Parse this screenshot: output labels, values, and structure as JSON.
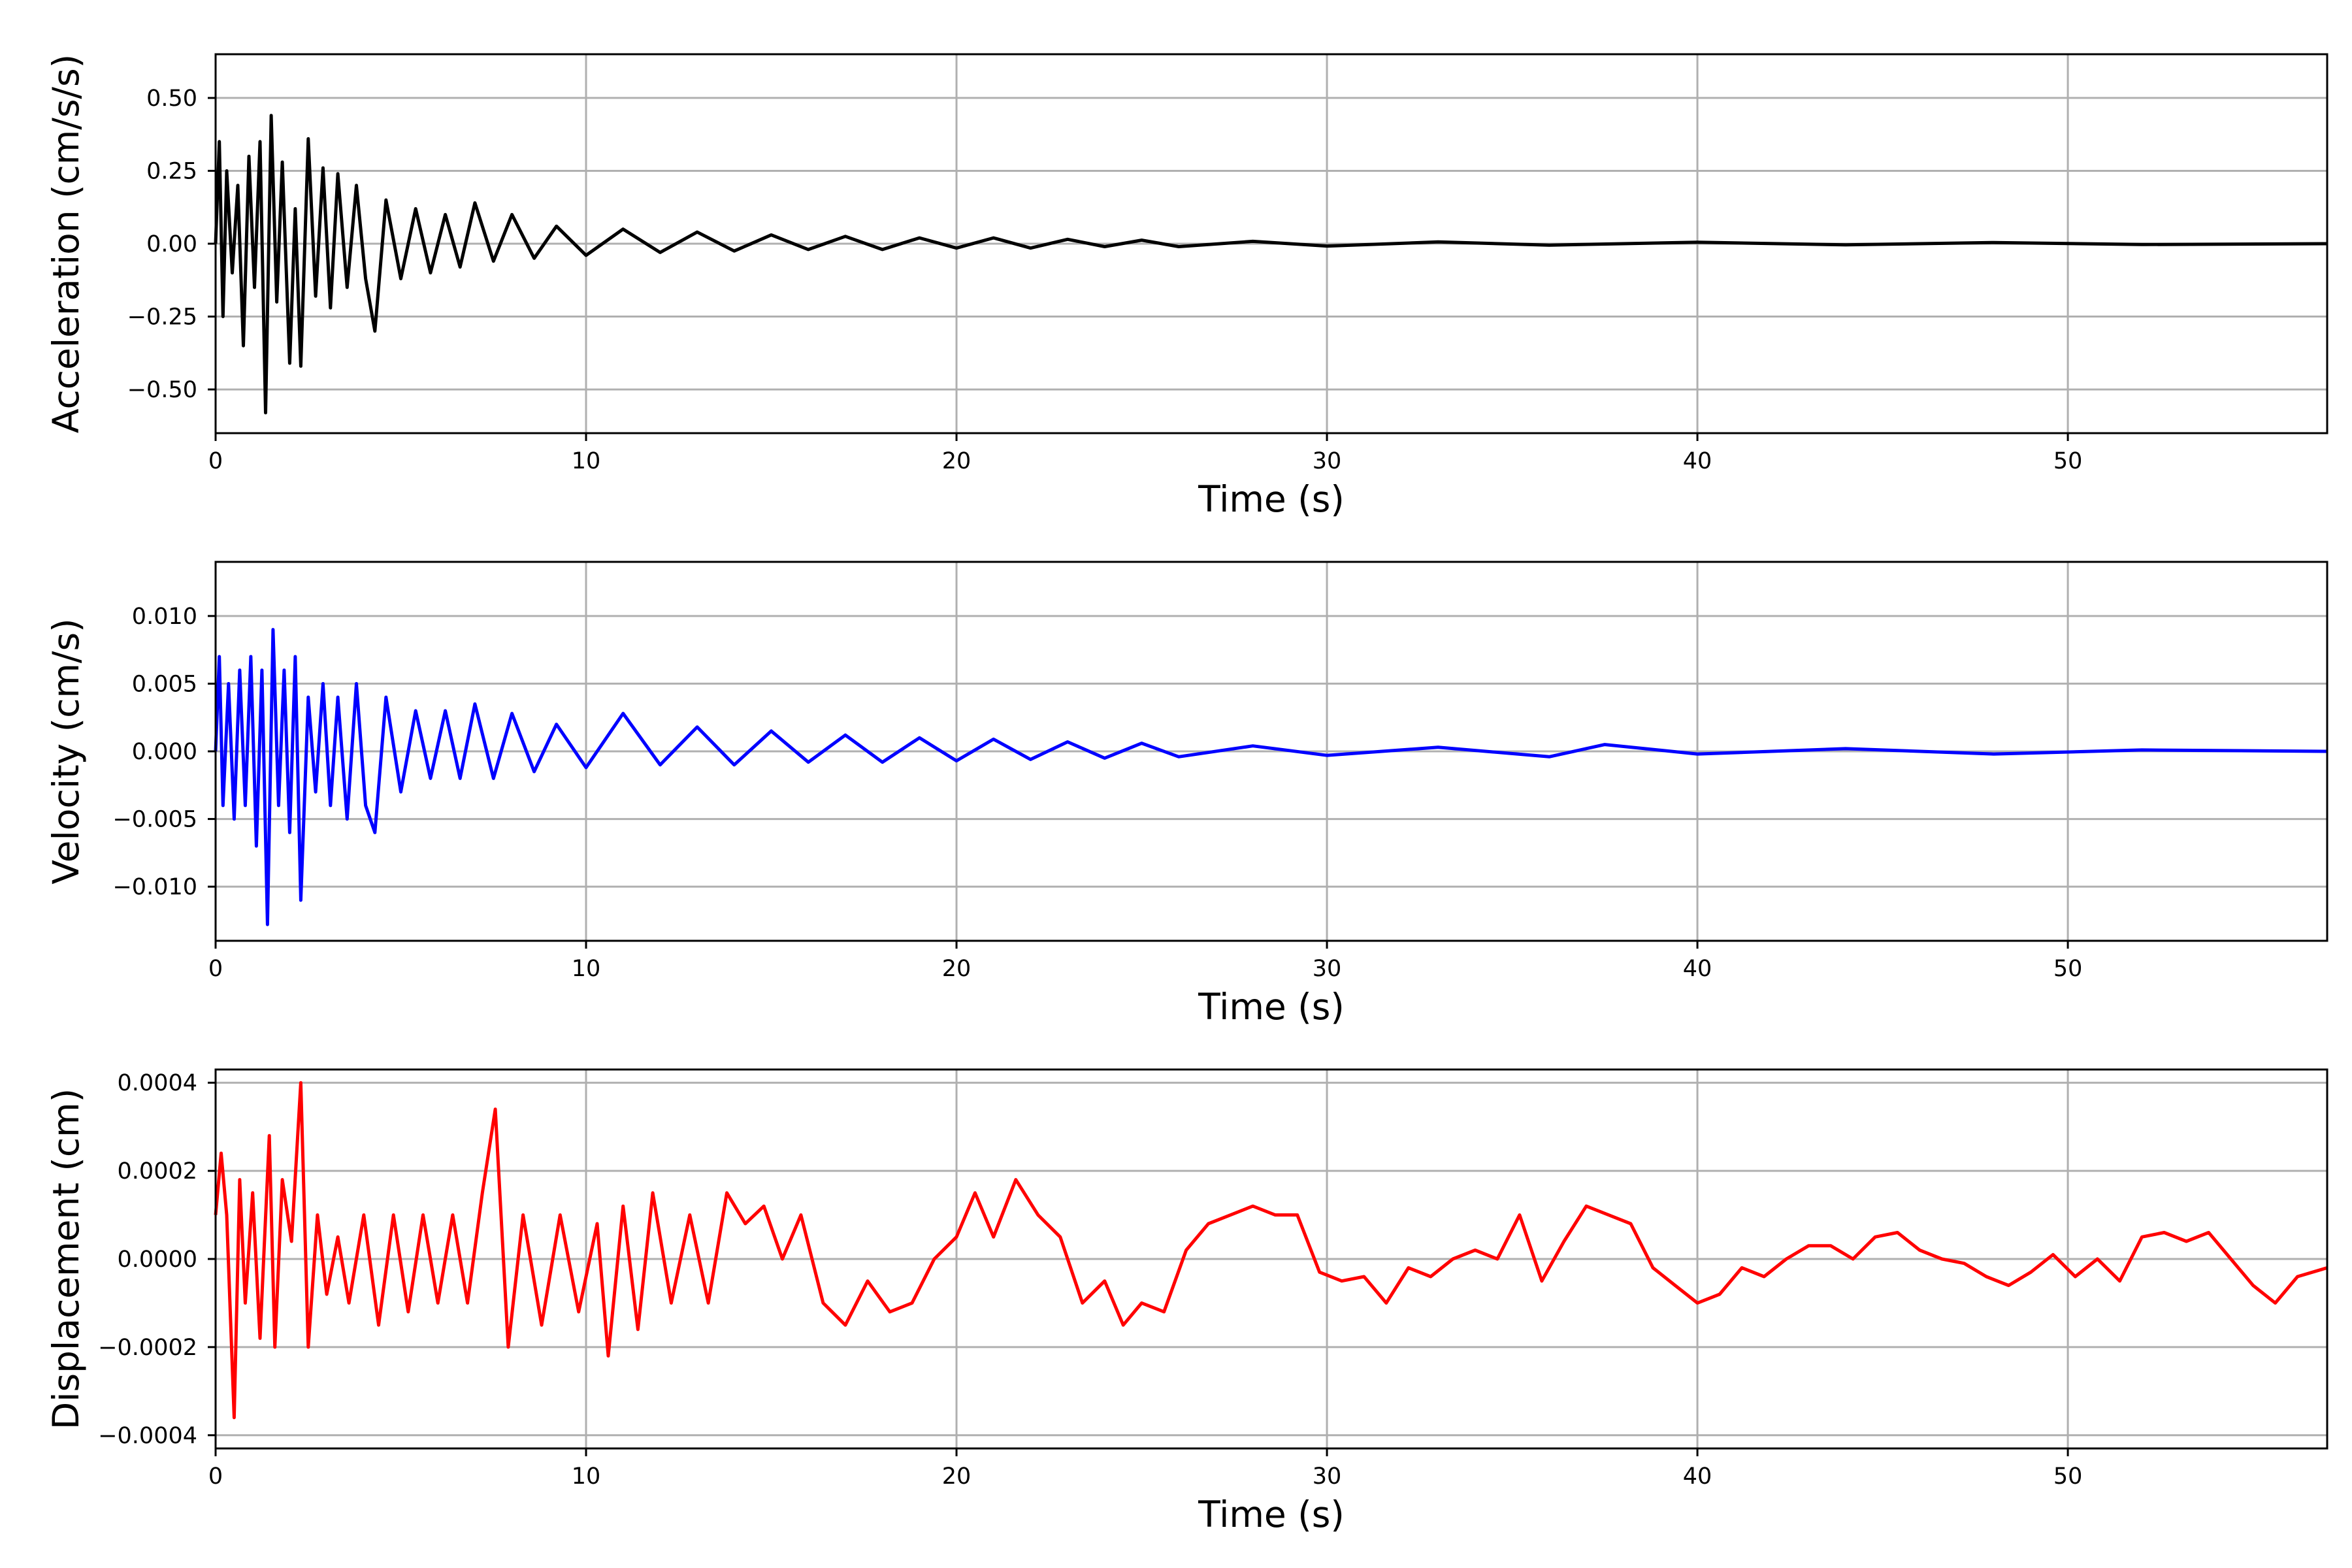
{
  "chart_data": [
    {
      "type": "line",
      "xlabel": "Time (s)",
      "ylabel": "Acceleration (cm/s/s)",
      "xlim": [
        0,
        57
      ],
      "ylim": [
        -0.65,
        0.65
      ],
      "grid": true,
      "xticks": [
        0,
        10,
        20,
        30,
        40,
        50
      ],
      "xtick_labels": [
        "0",
        "10",
        "20",
        "30",
        "40",
        "50"
      ],
      "yticks": [
        0.5,
        0.25,
        0.0,
        -0.25,
        -0.5
      ],
      "ytick_labels": [
        "0.50",
        "0.25",
        "0.00",
        "−0.25",
        "−0.50"
      ],
      "series": [
        {
          "color": "#000000",
          "x": [
            0.0,
            0.1,
            0.2,
            0.3,
            0.45,
            0.6,
            0.75,
            0.9,
            1.05,
            1.2,
            1.35,
            1.5,
            1.65,
            1.8,
            2.0,
            2.15,
            2.3,
            2.5,
            2.7,
            2.9,
            3.1,
            3.3,
            3.55,
            3.8,
            4.05,
            4.3,
            4.6,
            5.0,
            5.4,
            5.8,
            6.2,
            6.6,
            7.0,
            7.5,
            8.0,
            8.6,
            9.2,
            10.0,
            11.0,
            12.0,
            13.0,
            14.0,
            15.0,
            16.0,
            17.0,
            18.0,
            19.0,
            20.0,
            21.0,
            22.0,
            23.0,
            24.0,
            25.0,
            26.0,
            28.0,
            30.0,
            33.0,
            36.0,
            40.0,
            44.0,
            48.0,
            52.0,
            57.0
          ],
          "y": [
            0.0,
            0.35,
            -0.25,
            0.25,
            -0.1,
            0.2,
            -0.35,
            0.3,
            -0.15,
            0.35,
            -0.58,
            0.44,
            -0.2,
            0.28,
            -0.41,
            0.12,
            -0.42,
            0.36,
            -0.18,
            0.26,
            -0.22,
            0.24,
            -0.15,
            0.2,
            -0.12,
            -0.3,
            0.15,
            -0.12,
            0.12,
            -0.1,
            0.1,
            -0.08,
            0.14,
            -0.06,
            0.1,
            -0.05,
            0.06,
            -0.04,
            0.05,
            -0.03,
            0.04,
            -0.025,
            0.03,
            -0.02,
            0.025,
            -0.02,
            0.02,
            -0.015,
            0.02,
            -0.015,
            0.015,
            -0.01,
            0.012,
            -0.01,
            0.008,
            -0.008,
            0.006,
            -0.005,
            0.005,
            -0.004,
            0.004,
            -0.003,
            0.0
          ]
        }
      ]
    },
    {
      "type": "line",
      "xlabel": "Time (s)",
      "ylabel": "Velocity (cm/s)",
      "xlim": [
        0,
        57
      ],
      "ylim": [
        -0.014,
        0.014
      ],
      "grid": true,
      "xticks": [
        0,
        10,
        20,
        30,
        40,
        50
      ],
      "xtick_labels": [
        "0",
        "10",
        "20",
        "30",
        "40",
        "50"
      ],
      "yticks": [
        0.01,
        0.005,
        0.0,
        -0.005,
        -0.01
      ],
      "ytick_labels": [
        "0.010",
        "0.005",
        "0.000",
        "−0.005",
        "−0.010"
      ],
      "series": [
        {
          "color": "#0000ff",
          "x": [
            0.0,
            0.1,
            0.2,
            0.35,
            0.5,
            0.65,
            0.8,
            0.95,
            1.1,
            1.25,
            1.4,
            1.55,
            1.7,
            1.85,
            2.0,
            2.15,
            2.3,
            2.5,
            2.7,
            2.9,
            3.1,
            3.3,
            3.55,
            3.8,
            4.05,
            4.3,
            4.6,
            5.0,
            5.4,
            5.8,
            6.2,
            6.6,
            7.0,
            7.5,
            8.0,
            8.6,
            9.2,
            10.0,
            11.0,
            12.0,
            13.0,
            14.0,
            15.0,
            16.0,
            17.0,
            18.0,
            19.0,
            20.0,
            21.0,
            22.0,
            23.0,
            24.0,
            25.0,
            26.0,
            28.0,
            30.0,
            33.0,
            36.0,
            37.5,
            40.0,
            44.0,
            48.0,
            52.0,
            57.0
          ],
          "y": [
            0.0,
            0.007,
            -0.004,
            0.005,
            -0.005,
            0.006,
            -0.004,
            0.007,
            -0.007,
            0.006,
            -0.0128,
            0.009,
            -0.004,
            0.006,
            -0.006,
            0.007,
            -0.011,
            0.004,
            -0.003,
            0.005,
            -0.004,
            0.004,
            -0.005,
            0.005,
            -0.004,
            -0.006,
            0.004,
            -0.003,
            0.003,
            -0.002,
            0.003,
            -0.002,
            0.0035,
            -0.002,
            0.0028,
            -0.0015,
            0.002,
            -0.0012,
            0.0028,
            -0.001,
            0.0018,
            -0.001,
            0.0015,
            -0.0008,
            0.0012,
            -0.0008,
            0.001,
            -0.0007,
            0.0009,
            -0.0006,
            0.0007,
            -0.0005,
            0.0006,
            -0.0004,
            0.0004,
            -0.0003,
            0.0003,
            -0.0004,
            0.0005,
            -0.0002,
            0.0002,
            -0.0002,
            0.0001,
            0.0
          ]
        }
      ]
    },
    {
      "type": "line",
      "xlabel": "Time (s)",
      "ylabel": "Displacement (cm)",
      "xlim": [
        0,
        57
      ],
      "ylim": [
        -0.00043,
        0.00043
      ],
      "grid": true,
      "xticks": [
        0,
        10,
        20,
        30,
        40,
        50
      ],
      "xtick_labels": [
        "0",
        "10",
        "20",
        "30",
        "40",
        "50"
      ],
      "yticks": [
        0.0004,
        0.0002,
        0.0,
        -0.0002,
        -0.0004
      ],
      "ytick_labels": [
        "0.0004",
        "0.0002",
        "0.0000",
        "−0.0002",
        "−0.0004"
      ],
      "series": [
        {
          "color": "#ff0000",
          "x": [
            0.0,
            0.15,
            0.3,
            0.5,
            0.65,
            0.8,
            1.0,
            1.2,
            1.45,
            1.6,
            1.8,
            2.05,
            2.3,
            2.5,
            2.75,
            3.0,
            3.3,
            3.6,
            4.0,
            4.4,
            4.8,
            5.2,
            5.6,
            6.0,
            6.4,
            6.8,
            7.2,
            7.55,
            7.9,
            8.3,
            8.8,
            9.3,
            9.8,
            10.3,
            10.6,
            11.0,
            11.4,
            11.8,
            12.3,
            12.8,
            13.3,
            13.8,
            14.3,
            14.8,
            15.3,
            15.8,
            16.4,
            17.0,
            17.6,
            18.2,
            18.8,
            19.4,
            20.0,
            20.5,
            21.0,
            21.6,
            22.2,
            22.8,
            23.4,
            24.0,
            24.5,
            25.0,
            25.6,
            26.2,
            26.8,
            27.4,
            28.0,
            28.6,
            29.2,
            29.8,
            30.4,
            31.0,
            31.6,
            32.2,
            32.8,
            33.4,
            34.0,
            34.6,
            35.2,
            35.8,
            36.4,
            37.0,
            37.6,
            38.2,
            38.8,
            39.4,
            40.0,
            40.6,
            41.2,
            41.8,
            42.4,
            43.0,
            43.6,
            44.2,
            44.8,
            45.4,
            46.0,
            46.6,
            47.2,
            47.8,
            48.4,
            49.0,
            49.6,
            50.2,
            50.8,
            51.4,
            52.0,
            52.6,
            53.2,
            53.8,
            54.4,
            55.0,
            55.6,
            56.2,
            57.0
          ],
          "y": [
            0.0001,
            0.00024,
            0.0001,
            -0.00036,
            0.00018,
            -0.0001,
            0.00015,
            -0.00018,
            0.00028,
            -0.0002,
            0.00018,
            4e-05,
            0.0004,
            -0.0002,
            0.0001,
            -8e-05,
            5e-05,
            -0.0001,
            0.0001,
            -0.00015,
            0.0001,
            -0.00012,
            0.0001,
            -0.0001,
            0.0001,
            -0.0001,
            0.00015,
            0.00034,
            -0.0002,
            0.0001,
            -0.00015,
            0.0001,
            -0.00012,
            8e-05,
            -0.00022,
            0.00012,
            -0.00016,
            0.00015,
            -0.0001,
            0.0001,
            -0.0001,
            0.00015,
            8e-05,
            0.00012,
            0.0,
            0.0001,
            -0.0001,
            -0.00015,
            -5e-05,
            -0.00012,
            -0.0001,
            0.0,
            5e-05,
            0.00015,
            5e-05,
            0.00018,
            0.0001,
            5e-05,
            -0.0001,
            -5e-05,
            -0.00015,
            -0.0001,
            -0.00012,
            2e-05,
            8e-05,
            0.0001,
            0.00012,
            0.0001,
            0.0001,
            -3e-05,
            -5e-05,
            -4e-05,
            -0.0001,
            -2e-05,
            -4e-05,
            0.0,
            2e-05,
            0.0,
            0.0001,
            -5e-05,
            4e-05,
            0.00012,
            0.0001,
            8e-05,
            -2e-05,
            -6e-05,
            -0.0001,
            -8e-05,
            -2e-05,
            -4e-05,
            0.0,
            3e-05,
            3e-05,
            0.0,
            5e-05,
            6e-05,
            2e-05,
            0.0,
            -1e-05,
            -4e-05,
            -6e-05,
            -3e-05,
            1e-05,
            -4e-05,
            0.0,
            -5e-05,
            5e-05,
            6e-05,
            4e-05,
            6e-05,
            0.0,
            -6e-05,
            -0.0001,
            -4e-05,
            -2e-05
          ]
        }
      ]
    }
  ]
}
